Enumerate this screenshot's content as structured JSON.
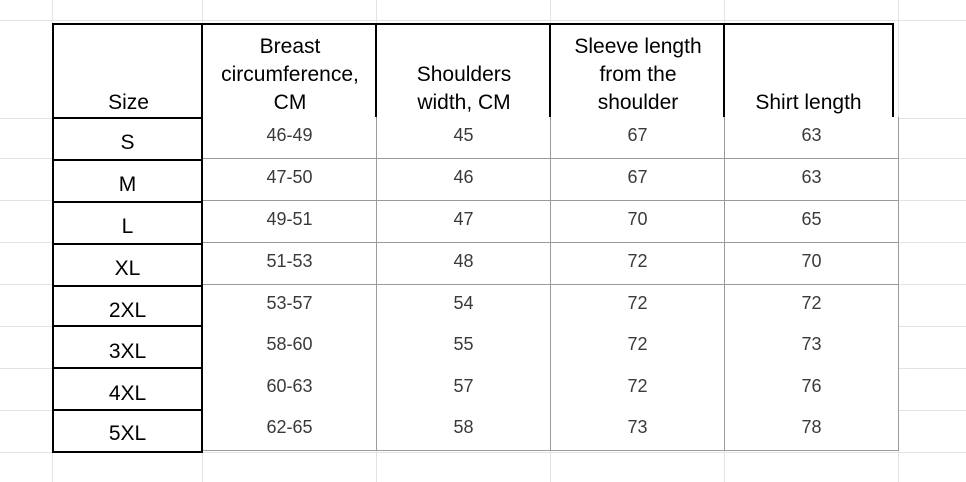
{
  "table": {
    "headers": [
      "Size",
      "Breast\ncircumference,\nCM",
      "Shoulders\nwidth, CM",
      "Sleeve length\nfrom the\nshoulder",
      "Shirt length"
    ],
    "rows": [
      {
        "size": "S",
        "values": [
          "46-49",
          "45",
          "67",
          "63"
        ]
      },
      {
        "size": "M",
        "values": [
          "47-50",
          "46",
          "67",
          "63"
        ]
      },
      {
        "size": "L",
        "values": [
          "49-51",
          "47",
          "70",
          "65"
        ]
      },
      {
        "size": "XL",
        "values": [
          "51-53",
          "48",
          "72",
          "70"
        ]
      },
      {
        "size": "2XL",
        "values": [
          "53-57",
          "54",
          "72",
          "72"
        ]
      },
      {
        "size": "3XL",
        "values": [
          "58-60",
          "55",
          "72",
          "73"
        ]
      },
      {
        "size": "4XL",
        "values": [
          "60-63",
          "57",
          "72",
          "76"
        ]
      },
      {
        "size": "5XL",
        "values": [
          "62-65",
          "58",
          "73",
          "78"
        ]
      }
    ]
  }
}
